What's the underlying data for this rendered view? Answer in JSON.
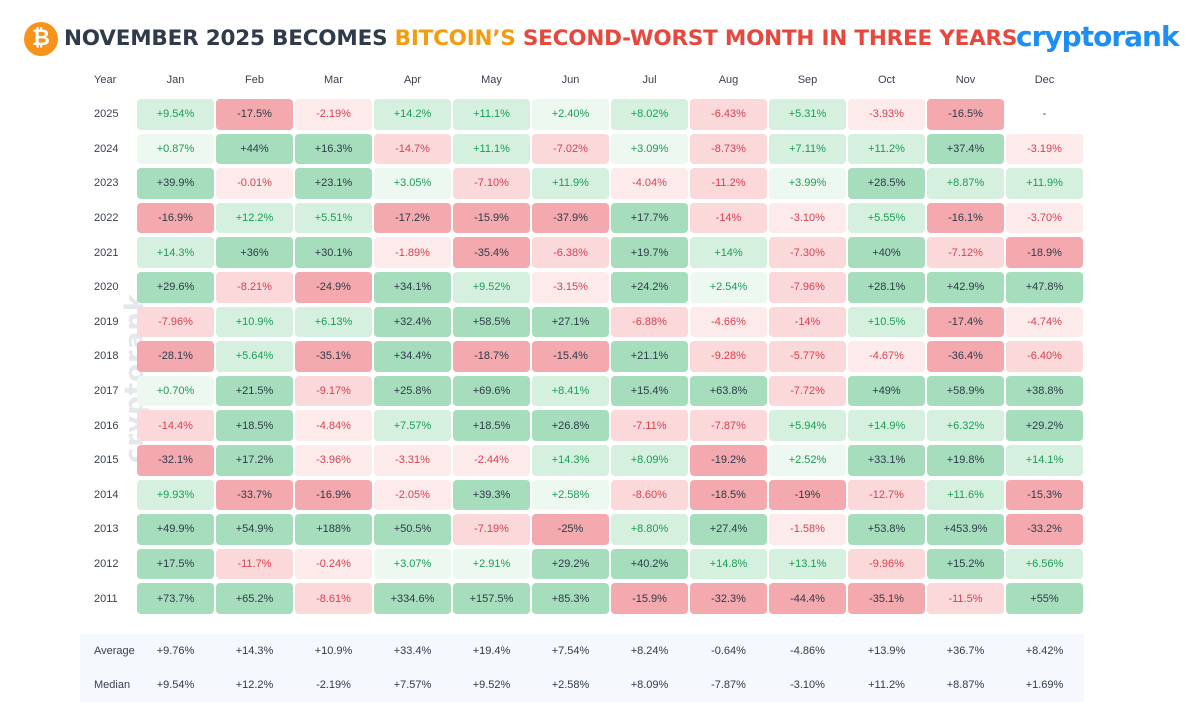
{
  "header": {
    "title_part1": "NOVEMBER 2025 BECOMES ",
    "title_part2": "BITCOIN’S",
    "title_part3": " SECOND-WORST MONTH IN THREE YEARS",
    "brand": "cryptorank",
    "logo_icon": "bitcoin-icon",
    "logo_glyph": "₿"
  },
  "watermark": "cryptorank",
  "colors": {
    "positive_text": "#1a9e55",
    "negative_text": "#d9414f",
    "neutral_text": "#2f3a4b",
    "strong_positive_bg": "#a6ddbc",
    "strong_negative_bg": "#f3a9ad"
  },
  "chart_data": {
    "type": "table",
    "title": "NOVEMBER 2025 BECOMES BITCOIN’S SECOND-WORST MONTH IN THREE YEARS",
    "year_header": "Year",
    "months": [
      "Jan",
      "Feb",
      "Mar",
      "Apr",
      "May",
      "Jun",
      "Jul",
      "Aug",
      "Sep",
      "Oct",
      "Nov",
      "Dec"
    ],
    "rows": [
      {
        "year": "2025",
        "values": [
          "+9.54%",
          "-17.5%",
          "-2.19%",
          "+14.2%",
          "+11.1%",
          "+2.40%",
          "+8.02%",
          "-6.43%",
          "+5.31%",
          "-3.93%",
          "-16.5%",
          "-"
        ]
      },
      {
        "year": "2024",
        "values": [
          "+0.87%",
          "+44%",
          "+16.3%",
          "-14.7%",
          "+11.1%",
          "-7.02%",
          "+3.09%",
          "-8.73%",
          "+7.11%",
          "+11.2%",
          "+37.4%",
          "-3.19%"
        ]
      },
      {
        "year": "2023",
        "values": [
          "+39.9%",
          "-0.01%",
          "+23.1%",
          "+3.05%",
          "-7.10%",
          "+11.9%",
          "-4.04%",
          "-11.2%",
          "+3.99%",
          "+28.5%",
          "+8.87%",
          "+11.9%"
        ]
      },
      {
        "year": "2022",
        "values": [
          "-16.9%",
          "+12.2%",
          "+5.51%",
          "-17.2%",
          "-15.9%",
          "-37.9%",
          "+17.7%",
          "-14%",
          "-3.10%",
          "+5.55%",
          "-16.1%",
          "-3.70%"
        ]
      },
      {
        "year": "2021",
        "values": [
          "+14.3%",
          "+36%",
          "+30.1%",
          "-1.89%",
          "-35.4%",
          "-6.38%",
          "+19.7%",
          "+14%",
          "-7.30%",
          "+40%",
          "-7.12%",
          "-18.9%"
        ]
      },
      {
        "year": "2020",
        "values": [
          "+29.6%",
          "-8.21%",
          "-24.9%",
          "+34.1%",
          "+9.52%",
          "-3.15%",
          "+24.2%",
          "+2.54%",
          "-7.96%",
          "+28.1%",
          "+42.9%",
          "+47.8%"
        ]
      },
      {
        "year": "2019",
        "values": [
          "-7.96%",
          "+10.9%",
          "+6.13%",
          "+32.4%",
          "+58.5%",
          "+27.1%",
          "-6.88%",
          "-4.66%",
          "-14%",
          "+10.5%",
          "-17.4%",
          "-4.74%"
        ]
      },
      {
        "year": "2018",
        "values": [
          "-28.1%",
          "+5.64%",
          "-35.1%",
          "+34.4%",
          "-18.7%",
          "-15.4%",
          "+21.1%",
          "-9.28%",
          "-5.77%",
          "-4.67%",
          "-36.4%",
          "-6.40%"
        ]
      },
      {
        "year": "2017",
        "values": [
          "+0.70%",
          "+21.5%",
          "-9.17%",
          "+25.8%",
          "+69.6%",
          "+8.41%",
          "+15.4%",
          "+63.8%",
          "-7.72%",
          "+49%",
          "+58.9%",
          "+38.8%"
        ]
      },
      {
        "year": "2016",
        "values": [
          "-14.4%",
          "+18.5%",
          "-4.84%",
          "+7.57%",
          "+18.5%",
          "+26.8%",
          "-7.11%",
          "-7.87%",
          "+5.94%",
          "+14.9%",
          "+6.32%",
          "+29.2%"
        ]
      },
      {
        "year": "2015",
        "values": [
          "-32.1%",
          "+17.2%",
          "-3.96%",
          "-3.31%",
          "-2.44%",
          "+14.3%",
          "+8.09%",
          "-19.2%",
          "+2.52%",
          "+33.1%",
          "+19.8%",
          "+14.1%"
        ]
      },
      {
        "year": "2014",
        "values": [
          "+9.93%",
          "-33.7%",
          "-16.9%",
          "-2.05%",
          "+39.3%",
          "+2.58%",
          "-8.60%",
          "-18.5%",
          "-19%",
          "-12.7%",
          "+11.6%",
          "-15.3%"
        ]
      },
      {
        "year": "2013",
        "values": [
          "+49.9%",
          "+54.9%",
          "+188%",
          "+50.5%",
          "-7.19%",
          "-25%",
          "+8.80%",
          "+27.4%",
          "-1.58%",
          "+53.8%",
          "+453.9%",
          "-33.2%"
        ]
      },
      {
        "year": "2012",
        "values": [
          "+17.5%",
          "-11.7%",
          "-0.24%",
          "+3.07%",
          "+2.91%",
          "+29.2%",
          "+40.2%",
          "+14.8%",
          "+13.1%",
          "-9.96%",
          "+15.2%",
          "+6.56%"
        ]
      },
      {
        "year": "2011",
        "values": [
          "+73.7%",
          "+65.2%",
          "-8.61%",
          "+334.6%",
          "+157.5%",
          "+85.3%",
          "-15.9%",
          "-32.3%",
          "-44.4%",
          "-35.1%",
          "-11.5%",
          "+55%"
        ]
      }
    ],
    "summary": [
      {
        "label": "Average",
        "values": [
          "+9.76%",
          "+14.3%",
          "+10.9%",
          "+33.4%",
          "+19.4%",
          "+7.54%",
          "+8.24%",
          "-0.64%",
          "-4.86%",
          "+13.9%",
          "+36.7%",
          "+8.42%"
        ]
      },
      {
        "label": "Median",
        "values": [
          "+9.54%",
          "+12.2%",
          "-2.19%",
          "+7.57%",
          "+9.52%",
          "+2.58%",
          "+8.09%",
          "-7.87%",
          "-3.10%",
          "+11.2%",
          "+8.87%",
          "+1.69%"
        ]
      }
    ]
  }
}
